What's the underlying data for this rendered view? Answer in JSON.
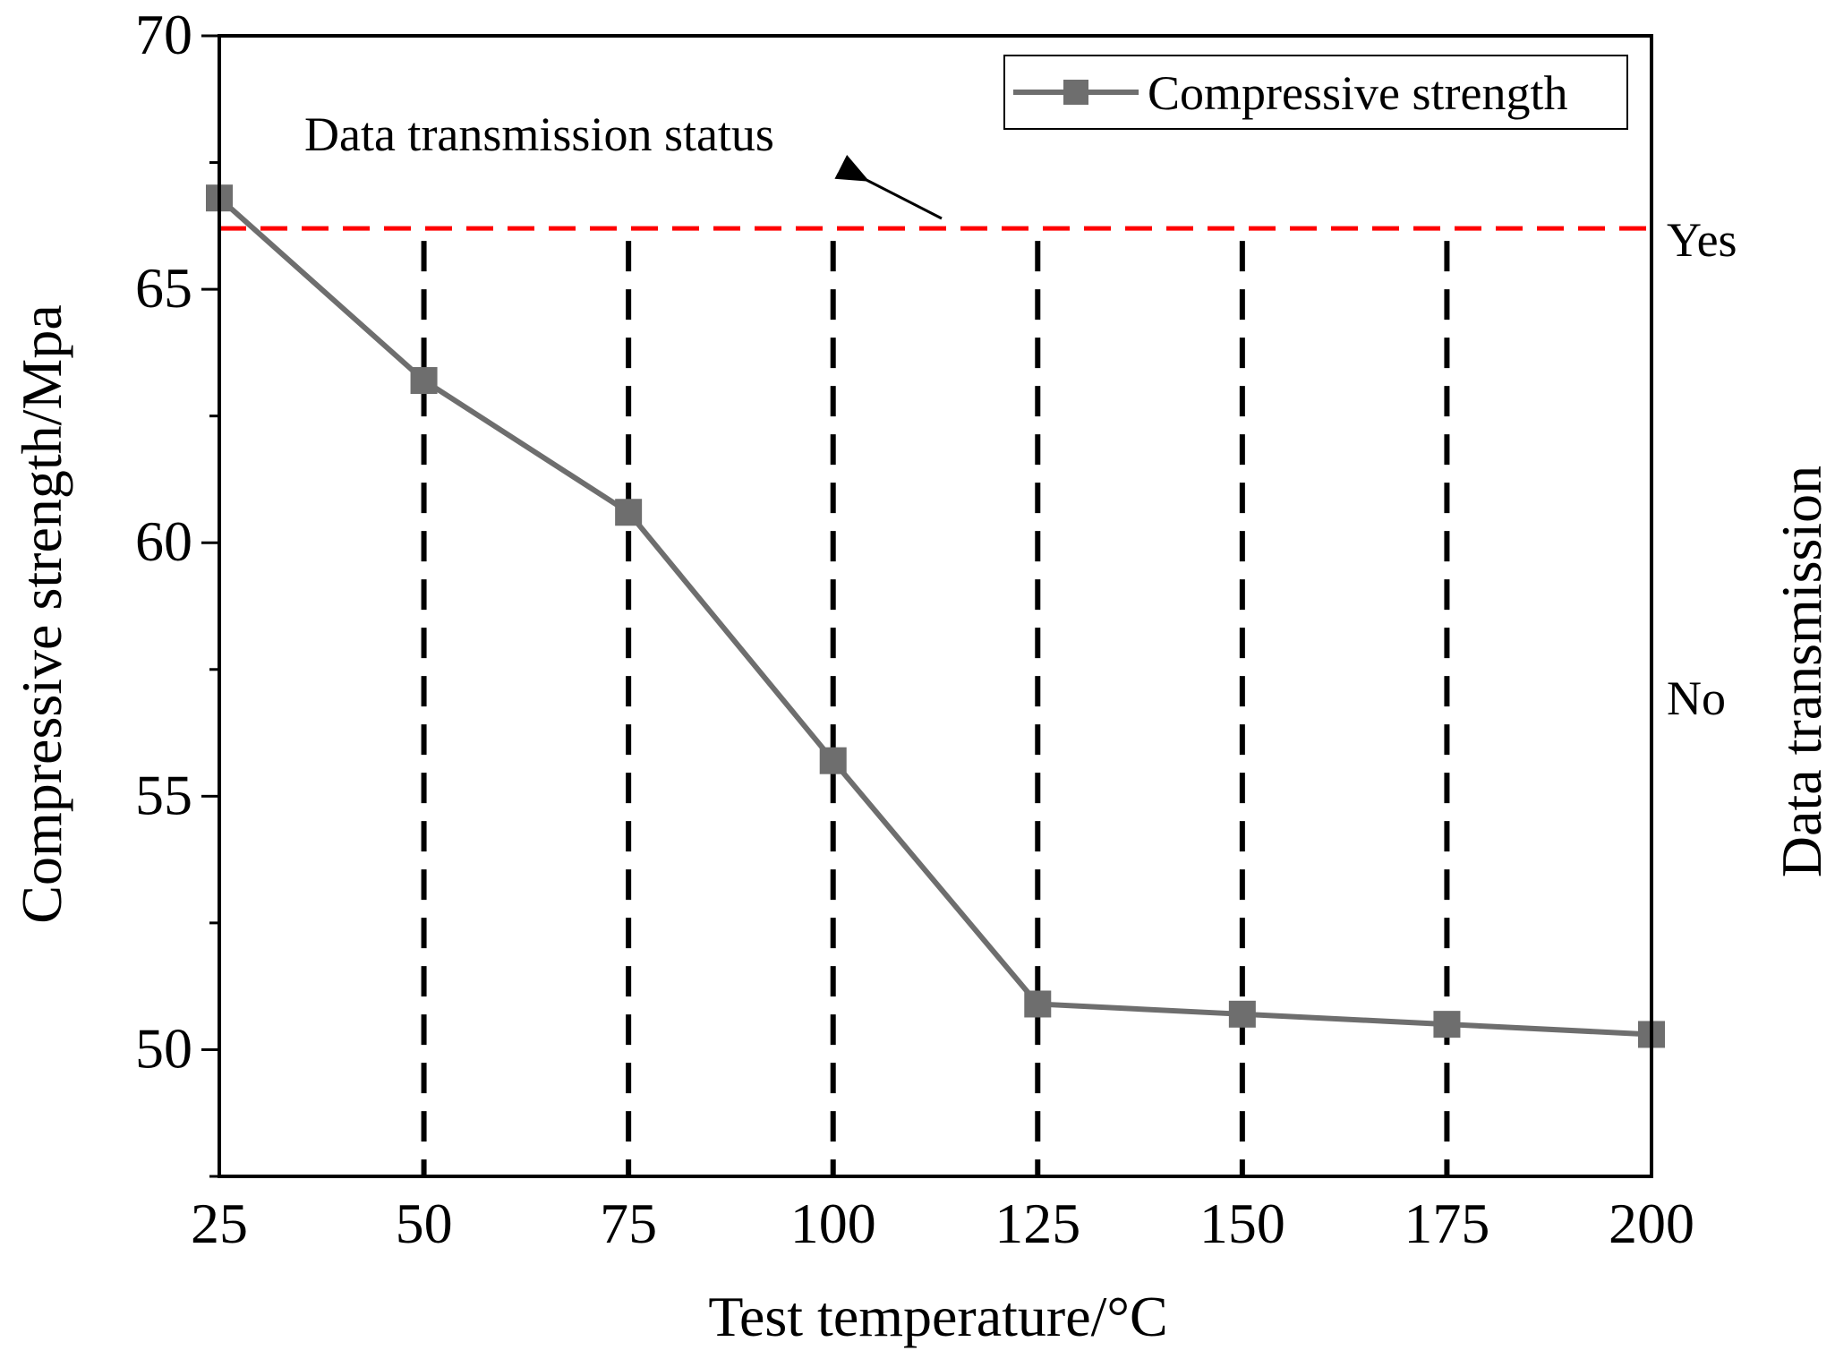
{
  "chart_data": {
    "type": "line",
    "x": [
      25,
      50,
      75,
      100,
      125,
      150,
      175,
      200
    ],
    "series": [
      {
        "name": "Compressive strength",
        "values": [
          66.8,
          63.2,
          60.6,
          55.7,
          50.9,
          50.7,
          50.5,
          50.3
        ],
        "color": "#6e6e6e",
        "marker": "square"
      }
    ],
    "xlabel": "Test temperature/°C",
    "ylabel": "Compressive strength/Mpa",
    "y2label": "Data transmission",
    "xlim": [
      25,
      200
    ],
    "ylim": [
      47.5,
      70
    ],
    "xticks": [
      "25",
      "50",
      "75",
      "100",
      "125",
      "150",
      "175",
      "200"
    ],
    "yticks": [
      "50",
      "55",
      "60",
      "65",
      "70"
    ],
    "xtick_values": [
      25,
      50,
      75,
      100,
      125,
      150,
      175,
      200
    ],
    "ytick_values": [
      50,
      55,
      60,
      65,
      70
    ],
    "threshold": {
      "value": 66.2,
      "color": "#ff0000",
      "style": "dashed"
    },
    "vlines": {
      "x": [
        50,
        75,
        100,
        125,
        150,
        175
      ],
      "color": "#000000",
      "style": "dashed"
    },
    "annotation": "Data transmission status",
    "right_labels": {
      "yes": "Yes",
      "no": "No"
    },
    "legend": {
      "position": "top-right",
      "entries": [
        "Compressive strength"
      ]
    },
    "grid": false
  }
}
